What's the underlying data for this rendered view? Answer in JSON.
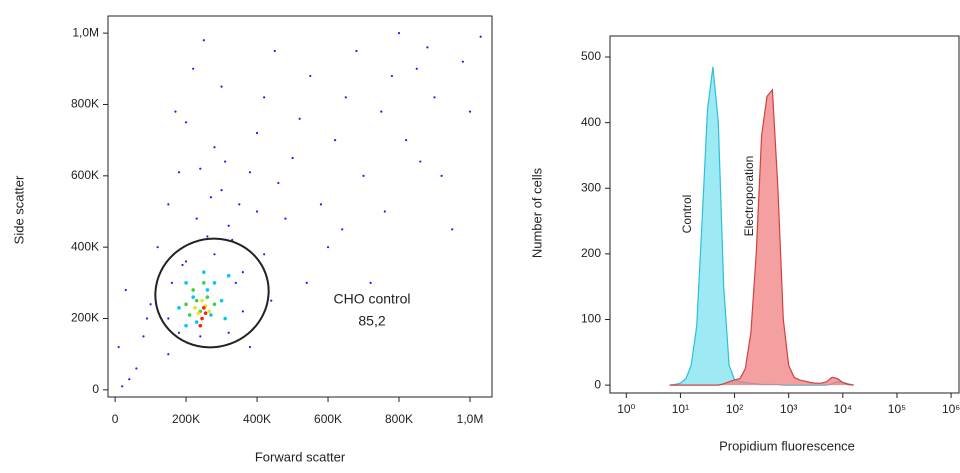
{
  "chart_data": [
    {
      "type": "scatter",
      "xlabel": "Forward scatter",
      "ylabel": "Side scatter",
      "annotations": [
        "CHO control",
        "85,2"
      ],
      "xlim": [
        -20000,
        1062000
      ],
      "ylim": [
        -20000,
        1048000
      ],
      "xticks": [
        0,
        {
          "value": 200000,
          "label": "200K"
        },
        {
          "value": 400000,
          "label": "400K"
        },
        {
          "value": 600000,
          "label": "600K"
        },
        {
          "value": 800000,
          "label": "800K"
        },
        {
          "value": 1000000,
          "label": "1,0M"
        }
      ],
      "yticks": [
        0,
        {
          "value": 200000,
          "label": "200K"
        },
        {
          "value": 400000,
          "label": "400K"
        },
        {
          "value": 600000,
          "label": "600K"
        },
        {
          "value": 800000,
          "label": "800K"
        },
        {
          "value": 1000000,
          "label": "1,0M"
        }
      ],
      "grid": false,
      "series": [
        {
          "color": "#1a1aff",
          "x": [
            20000,
            40000,
            10000,
            60000,
            30000,
            80000,
            120000,
            150000,
            180000,
            200000,
            220000,
            250000,
            280000,
            300000,
            320000,
            350000,
            380000,
            400000,
            420000,
            450000,
            460000,
            480000,
            500000,
            520000,
            550000,
            580000,
            600000,
            620000,
            650000,
            680000,
            700000,
            720000,
            750000,
            780000,
            800000,
            820000,
            850000,
            880000,
            900000,
            920000,
            950000,
            980000,
            1000000,
            1030000,
            100000,
            420000,
            440000,
            380000,
            150000,
            260000,
            330000,
            230000,
            190000,
            360000,
            90000,
            540000,
            640000,
            760000,
            860000,
            300000,
            170000,
            240000,
            270000,
            310000,
            400000,
            150000,
            160000,
            180000,
            200000,
            320000,
            340000,
            360000,
            240000,
            280000
          ],
          "y": [
            10000,
            30000,
            120000,
            60000,
            280000,
            150000,
            400000,
            520000,
            610000,
            750000,
            900000,
            980000,
            680000,
            560000,
            460000,
            520000,
            610000,
            720000,
            820000,
            950000,
            580000,
            480000,
            650000,
            760000,
            880000,
            520000,
            400000,
            700000,
            820000,
            950000,
            600000,
            300000,
            780000,
            880000,
            1000000,
            700000,
            900000,
            960000,
            820000,
            600000,
            450000,
            920000,
            780000,
            990000,
            240000,
            380000,
            250000,
            120000,
            100000,
            430000,
            420000,
            480000,
            350000,
            330000,
            200000,
            300000,
            450000,
            500000,
            640000,
            850000,
            780000,
            620000,
            540000,
            640000,
            500000,
            200000,
            300000,
            160000,
            360000,
            160000,
            300000,
            220000,
            150000,
            380000
          ]
        },
        {
          "color": "#00c8ff",
          "x": [
            180000,
            200000,
            220000,
            250000,
            280000,
            300000,
            320000,
            230000,
            270000,
            200000,
            310000,
            260000
          ],
          "y": [
            230000,
            300000,
            260000,
            330000,
            300000,
            250000,
            320000,
            190000,
            210000,
            180000,
            200000,
            280000
          ]
        },
        {
          "color": "#40d040",
          "x": [
            200000,
            220000,
            240000,
            260000,
            280000,
            230000,
            250000,
            210000
          ],
          "y": [
            240000,
            280000,
            220000,
            260000,
            240000,
            250000,
            300000,
            210000
          ]
        },
        {
          "color": "#f0e020",
          "x": [
            235000,
            255000,
            245000,
            265000,
            225000
          ],
          "y": [
            215000,
            235000,
            250000,
            220000,
            230000
          ]
        },
        {
          "color": "#ff2000",
          "x": [
            245000,
            255000,
            240000,
            250000
          ],
          "y": [
            200000,
            215000,
            180000,
            230000
          ]
        }
      ]
    },
    {
      "type": "area",
      "xlabel": "Propidium fluorescence",
      "ylabel": "Number of cells",
      "log_x": true,
      "xlim": [
        0.5,
        1400000
      ],
      "ylim": [
        -12,
        532
      ],
      "xticks": [
        {
          "value": 1,
          "label": "10⁰"
        },
        {
          "value": 10,
          "label": "10¹"
        },
        {
          "value": 100,
          "label": "10²"
        },
        {
          "value": 1000,
          "label": "10³"
        },
        {
          "value": 10000,
          "label": "10⁴"
        },
        {
          "value": 100000,
          "label": "10⁵"
        },
        {
          "value": 1000000,
          "label": "10⁶"
        }
      ],
      "yticks": [
        0,
        100,
        200,
        300,
        400,
        500
      ],
      "grid": false,
      "x": [
        6.3,
        7.9,
        10,
        12.6,
        15.8,
        20,
        25.1,
        31.6,
        39.8,
        50.1,
        63.1,
        79.4,
        100,
        126,
        158,
        200,
        251,
        316,
        398,
        501,
        631,
        794,
        1000,
        1259,
        1585,
        1995,
        2512,
        3162,
        3981,
        5012,
        6310,
        7943,
        10000,
        12589,
        15849
      ],
      "series": [
        {
          "name": "Control",
          "color": "#29c0d8",
          "fill": "#7de3f0",
          "values": [
            0,
            1,
            3,
            10,
            30,
            90,
            250,
            420,
            485,
            400,
            150,
            30,
            8,
            5,
            4,
            3,
            2,
            1,
            1,
            1,
            1,
            0,
            0,
            0,
            0,
            0,
            0,
            0,
            0,
            0,
            2,
            5,
            4,
            2,
            0
          ]
        },
        {
          "name": "Electroporation",
          "color": "#d04040",
          "fill": "#f08080",
          "values": [
            0,
            0,
            0,
            0,
            0,
            0,
            0,
            0,
            0,
            0,
            2,
            5,
            8,
            10,
            25,
            80,
            200,
            380,
            440,
            450,
            300,
            100,
            30,
            12,
            8,
            6,
            4,
            3,
            3,
            5,
            12,
            10,
            4,
            1,
            0
          ]
        }
      ]
    }
  ]
}
